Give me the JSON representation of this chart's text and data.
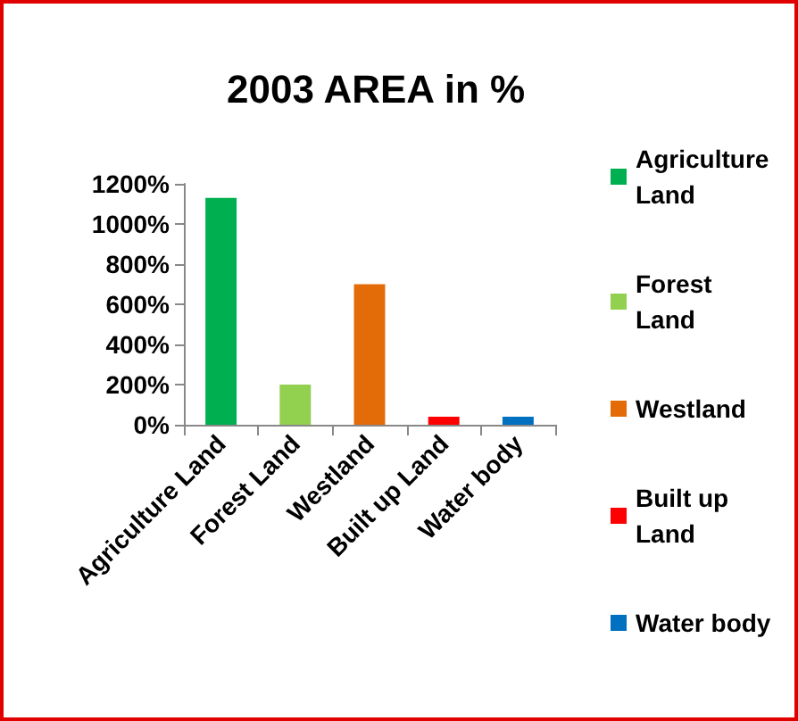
{
  "chart_data": {
    "type": "bar",
    "title": "2003 AREA in %",
    "categories": [
      "Agriculture Land",
      "Forest Land",
      "Westland",
      "Built up Land",
      "Water body"
    ],
    "series": [
      {
        "name": "Agriculture Land",
        "color": "#00b050",
        "values": [
          1130,
          null,
          null,
          null,
          null
        ]
      },
      {
        "name": "Forest Land",
        "color": "#92d050",
        "values": [
          null,
          200,
          null,
          null,
          null
        ]
      },
      {
        "name": "Westland",
        "color": "#e36c09",
        "values": [
          null,
          null,
          700,
          null,
          null
        ]
      },
      {
        "name": "Built up Land",
        "color": "#ff0000",
        "values": [
          null,
          null,
          null,
          40,
          null
        ]
      },
      {
        "name": "Water body",
        "color": "#0070c0",
        "values": [
          null,
          null,
          null,
          null,
          40
        ]
      }
    ],
    "ylim": [
      0,
      1200
    ],
    "yticks": [
      {
        "value": 0,
        "label": "0%"
      },
      {
        "value": 200,
        "label": "200%"
      },
      {
        "value": 400,
        "label": "400%"
      },
      {
        "value": 600,
        "label": "600%"
      },
      {
        "value": 800,
        "label": "800%"
      },
      {
        "value": 1000,
        "label": "1000%"
      },
      {
        "value": 1200,
        "label": "1200%"
      }
    ],
    "grid": false,
    "legend": "right"
  }
}
